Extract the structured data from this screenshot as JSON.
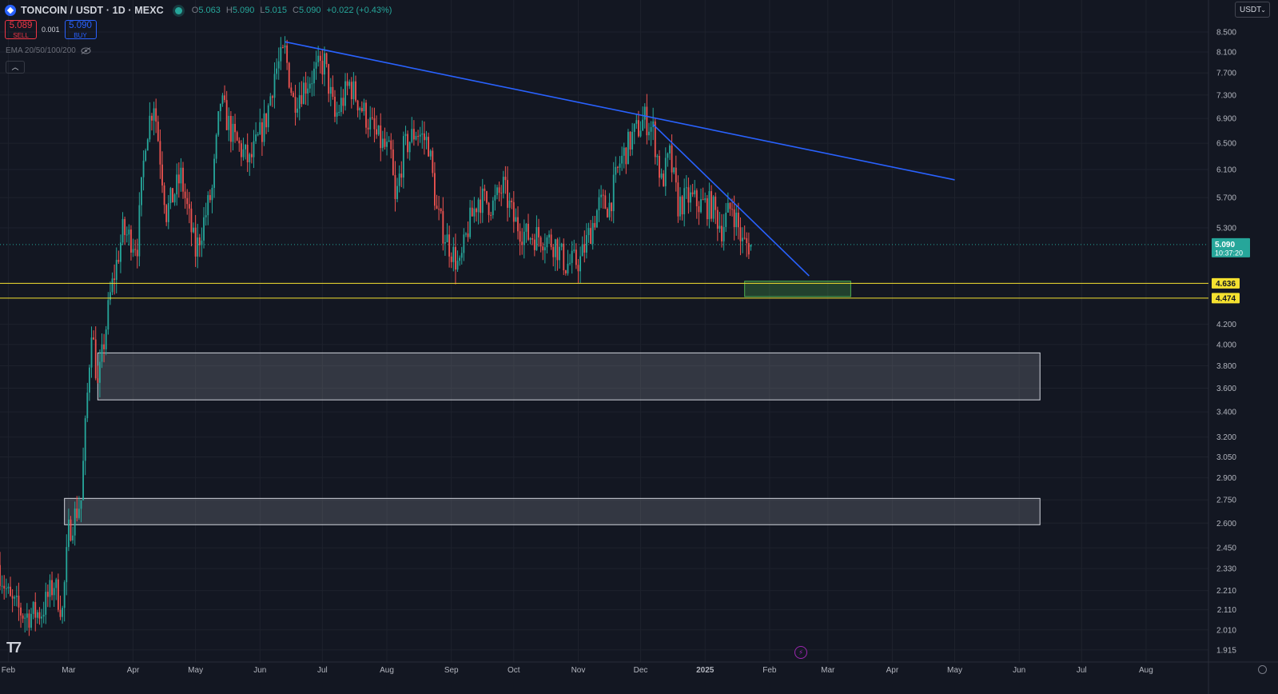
{
  "header": {
    "symbol": "TONCOIN / USDT · 1D · MEXC",
    "o_label": "O",
    "o_value": "5.063",
    "h_label": "H",
    "h_value": "5.090",
    "l_label": "L",
    "l_value": "5.015",
    "c_label": "C",
    "c_value": "5.090",
    "change": "+0.022 (+0.43%)"
  },
  "trade": {
    "sell_price": "5.089",
    "sell_label": "SELL",
    "spread": "0.001",
    "buy_price": "5.090",
    "buy_label": "BUY"
  },
  "indicator": {
    "label": "EMA 20/50/100/200"
  },
  "currency": {
    "label": "USDT"
  },
  "colors": {
    "bg": "#131722",
    "up": "#26a69a",
    "down": "#ef5350",
    "trend": "#2962ff",
    "level": "#f5e130",
    "zone_green": "#2e7d32",
    "zone_gray": "#434651"
  },
  "chart_data": {
    "type": "candlestick",
    "scale": "log",
    "ylim": [
      1.86,
      8.8
    ],
    "xlim": [
      "2024-01-28",
      "2025-08-31"
    ],
    "y_ticks": [
      "8.500",
      "8.100",
      "7.700",
      "7.300",
      "6.900",
      "6.500",
      "6.100",
      "5.700",
      "5.300",
      "4.200",
      "4.000",
      "3.800",
      "3.600",
      "3.400",
      "3.200",
      "3.050",
      "2.900",
      "2.750",
      "2.600",
      "2.450",
      "2.330",
      "2.210",
      "2.110",
      "2.010",
      "1.915"
    ],
    "x_ticks": [
      {
        "label": "Feb",
        "date": "2024-02-01"
      },
      {
        "label": "Mar",
        "date": "2024-03-01"
      },
      {
        "label": "Apr",
        "date": "2024-04-01"
      },
      {
        "label": "May",
        "date": "2024-05-01"
      },
      {
        "label": "Jun",
        "date": "2024-06-01"
      },
      {
        "label": "Jul",
        "date": "2024-07-01"
      },
      {
        "label": "Aug",
        "date": "2024-08-01"
      },
      {
        "label": "Sep",
        "date": "2024-09-01"
      },
      {
        "label": "Oct",
        "date": "2024-10-01"
      },
      {
        "label": "Nov",
        "date": "2024-11-01"
      },
      {
        "label": "Dec",
        "date": "2024-12-01"
      },
      {
        "label": "2025",
        "date": "2025-01-01"
      },
      {
        "label": "Feb",
        "date": "2025-02-01"
      },
      {
        "label": "Mar",
        "date": "2025-03-01"
      },
      {
        "label": "Apr",
        "date": "2025-04-01"
      },
      {
        "label": "May",
        "date": "2025-05-01"
      },
      {
        "label": "Jun",
        "date": "2025-06-01"
      },
      {
        "label": "Jul",
        "date": "2025-07-01"
      },
      {
        "label": "Aug",
        "date": "2025-08-01"
      }
    ],
    "price_keypoints": [
      [
        "2024-01-28",
        2.35
      ],
      [
        "2024-02-03",
        2.15
      ],
      [
        "2024-02-10",
        2.08
      ],
      [
        "2024-02-18",
        2.1
      ],
      [
        "2024-02-24",
        2.25
      ],
      [
        "2024-02-28",
        2.1
      ],
      [
        "2024-03-02",
        2.55
      ],
      [
        "2024-03-08",
        2.75
      ],
      [
        "2024-03-13",
        4.2
      ],
      [
        "2024-03-16",
        3.6
      ],
      [
        "2024-03-22",
        4.5
      ],
      [
        "2024-03-28",
        5.25
      ],
      [
        "2024-04-04",
        5.1
      ],
      [
        "2024-04-08",
        6.6
      ],
      [
        "2024-04-12",
        7.2
      ],
      [
        "2024-04-18",
        5.5
      ],
      [
        "2024-04-25",
        6.0
      ],
      [
        "2024-05-02",
        5.0
      ],
      [
        "2024-05-10",
        5.8
      ],
      [
        "2024-05-14",
        7.2
      ],
      [
        "2024-05-20",
        6.6
      ],
      [
        "2024-05-28",
        6.2
      ],
      [
        "2024-06-05",
        6.9
      ],
      [
        "2024-06-09",
        7.7
      ],
      [
        "2024-06-14",
        8.1
      ],
      [
        "2024-06-18",
        7.2
      ],
      [
        "2024-06-26",
        7.6
      ],
      [
        "2024-07-03",
        7.9
      ],
      [
        "2024-07-08",
        6.9
      ],
      [
        "2024-07-15",
        7.5
      ],
      [
        "2024-07-22",
        7.0
      ],
      [
        "2024-07-28",
        6.6
      ],
      [
        "2024-08-04",
        6.3
      ],
      [
        "2024-08-06",
        5.6
      ],
      [
        "2024-08-10",
        6.4
      ],
      [
        "2024-08-16",
        6.7
      ],
      [
        "2024-08-22",
        6.5
      ],
      [
        "2024-08-26",
        5.5
      ],
      [
        "2024-08-30",
        5.2
      ],
      [
        "2024-09-06",
        4.8
      ],
      [
        "2024-09-10",
        5.3
      ],
      [
        "2024-09-15",
        5.7
      ],
      [
        "2024-09-22",
        5.6
      ],
      [
        "2024-09-27",
        5.85
      ],
      [
        "2024-10-02",
        5.4
      ],
      [
        "2024-10-08",
        5.2
      ],
      [
        "2024-10-15",
        5.2
      ],
      [
        "2024-10-22",
        5.1
      ],
      [
        "2024-10-27",
        4.85
      ],
      [
        "2024-11-03",
        4.9
      ],
      [
        "2024-11-07",
        5.2
      ],
      [
        "2024-11-12",
        5.6
      ],
      [
        "2024-11-17",
        5.6
      ],
      [
        "2024-11-22",
        6.2
      ],
      [
        "2024-11-28",
        6.6
      ],
      [
        "2024-12-04",
        6.9
      ],
      [
        "2024-12-08",
        6.7
      ],
      [
        "2024-12-12",
        5.9
      ],
      [
        "2024-12-16",
        6.3
      ],
      [
        "2024-12-20",
        5.6
      ],
      [
        "2024-12-25",
        5.7
      ],
      [
        "2024-12-31",
        5.6
      ],
      [
        "2025-01-05",
        5.6
      ],
      [
        "2025-01-10",
        5.3
      ],
      [
        "2025-01-15",
        5.6
      ],
      [
        "2025-01-20",
        5.1
      ],
      [
        "2025-01-24",
        5.09
      ]
    ],
    "trendlines": [
      {
        "from": [
          "2024-06-13",
          8.3
        ],
        "to": [
          "2025-05-01",
          5.95
        ]
      },
      {
        "from": [
          "2024-12-07",
          6.8
        ],
        "to": [
          "2025-02-20",
          4.72
        ]
      }
    ],
    "levels": [
      {
        "value": 4.636,
        "label": "4.636"
      },
      {
        "value": 4.474,
        "label": "4.474"
      }
    ],
    "zones": [
      {
        "from": "2025-01-20",
        "to": "2025-03-12",
        "low": 4.49,
        "high": 4.66,
        "color": "green"
      },
      {
        "from": "2024-03-15",
        "to": "2025-06-11",
        "low": 3.5,
        "high": 3.92,
        "color": "gray"
      },
      {
        "from": "2024-02-28",
        "to": "2025-06-11",
        "low": 2.59,
        "high": 2.76,
        "color": "gray"
      }
    ],
    "last_price": {
      "value": 5.09,
      "label": "5.090",
      "countdown": "10:37:20"
    }
  }
}
